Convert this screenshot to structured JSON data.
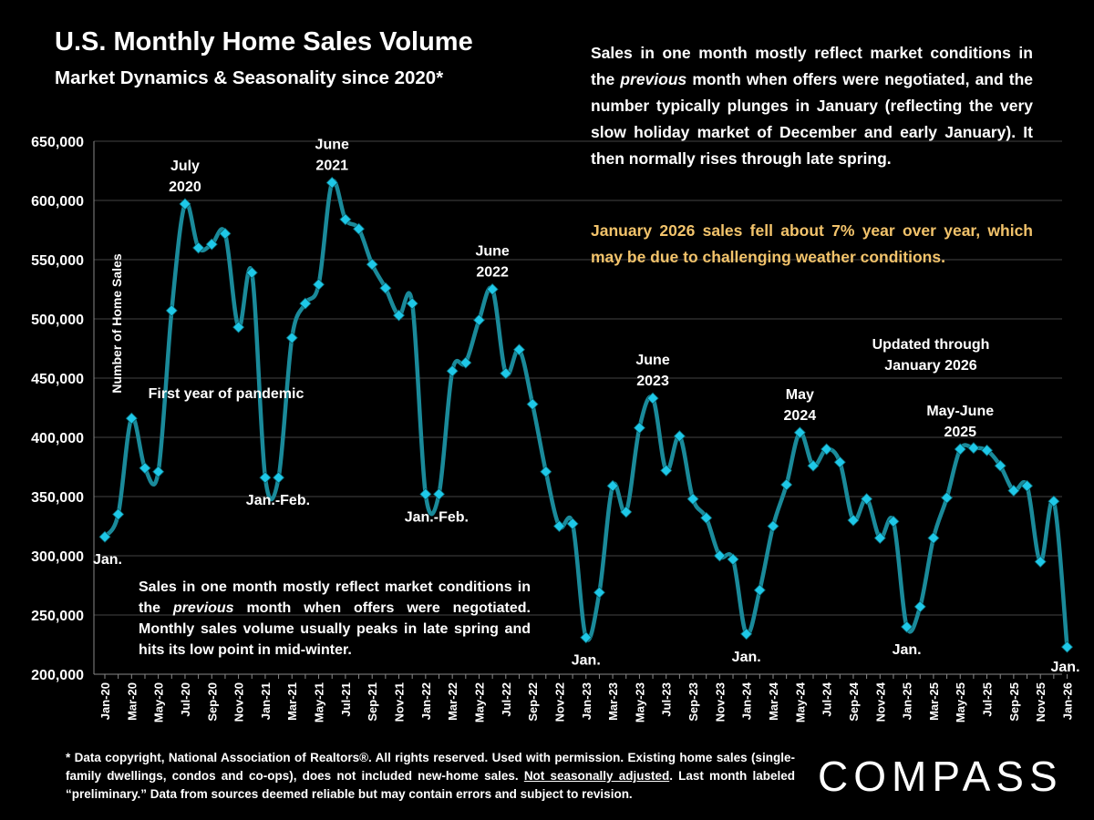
{
  "title": "U.S. Monthly Home Sales Volume",
  "subtitle": "Market Dynamics & Seasonality since 2020*",
  "note_top_html": "Sales in one month mostly reflect market conditions in the <i>previous</i> month when offers were negotiated, and the number typically plunges in January (reflecting the very slow holiday market of December and early January). It then normally rises through late spring.",
  "note_jan": "January 2026 sales fell about 7% year over year, which may be due to challenging weather conditions.",
  "note_bottom_html": "Sales in one month mostly reflect market conditions in the <i>previous</i> month when offers were negotiated. Monthly sales volume usually peaks in late spring and hits its low point in mid-winter.",
  "footer_html": "* Data copyright, National Association of Realtors®. All rights reserved. Used with permission. Existing home sales (single-family dwellings, condos and co-ops), does not included new-home sales. <u>Not seasonally adjusted</u>. Last month labeled “preliminary.” Data from sources deemed reliable but may contain errors and subject to revision.",
  "logo_text": "COMPASS",
  "colors": {
    "line": "#1a8a9a",
    "marker": "#1ec8e8",
    "background": "#000000",
    "highlight_text": "#f2c36b",
    "grid": "#444444"
  },
  "chart_data": {
    "type": "line",
    "ylabel": "Number of Home Sales",
    "xlabel": "",
    "ylim": [
      200000,
      650000
    ],
    "yticks": [
      200000,
      250000,
      300000,
      350000,
      400000,
      450000,
      500000,
      550000,
      600000,
      650000
    ],
    "ytick_labels": [
      "200,000",
      "250,000",
      "300,000",
      "350,000",
      "400,000",
      "450,000",
      "500,000",
      "550,000",
      "600,000",
      "650,000"
    ],
    "grid": "horizontal",
    "x": [
      "Jan-20",
      "Feb-20",
      "Mar-20",
      "Apr-20",
      "May-20",
      "Jun-20",
      "Jul-20",
      "Aug-20",
      "Sep-20",
      "Oct-20",
      "Nov-20",
      "Dec-20",
      "Jan-21",
      "Feb-21",
      "Mar-21",
      "Apr-21",
      "May-21",
      "Jun-21",
      "Jul-21",
      "Aug-21",
      "Sep-21",
      "Oct-21",
      "Nov-21",
      "Dec-21",
      "Jan-22",
      "Feb-22",
      "Mar-22",
      "Apr-22",
      "May-22",
      "Jun-22",
      "Jul-22",
      "Aug-22",
      "Sep-22",
      "Oct-22",
      "Nov-22",
      "Dec-22",
      "Jan-23",
      "Feb-23",
      "Mar-23",
      "Apr-23",
      "May-23",
      "Jun-23",
      "Jul-23",
      "Aug-23",
      "Sep-23",
      "Oct-23",
      "Nov-23",
      "Dec-23",
      "Jan-24",
      "Feb-24",
      "Mar-24",
      "Apr-24",
      "May-24",
      "Jun-24",
      "Jul-24",
      "Aug-24",
      "Sep-24",
      "Oct-24",
      "Nov-24",
      "Dec-24",
      "Jan-25",
      "Feb-25",
      "Mar-25",
      "Apr-25",
      "May-25",
      "Jun-25",
      "Jul-25",
      "Aug-25",
      "Sep-25",
      "Oct-25",
      "Nov-25",
      "Dec-25",
      "Jan-26"
    ],
    "series": [
      {
        "values": [
          316000,
          335000,
          416000,
          374000,
          371000,
          507000,
          597000,
          560000,
          563000,
          572000,
          493000,
          539000,
          366000,
          366000,
          484000,
          513000,
          529000,
          615000,
          584000,
          576000,
          546000,
          526000,
          503000,
          513000,
          352000,
          352000,
          456000,
          463000,
          499000,
          525000,
          454000,
          474000,
          428000,
          371000,
          325000,
          327000,
          231000,
          269000,
          359000,
          337000,
          408000,
          433000,
          372000,
          401000,
          348000,
          332000,
          300000,
          297000,
          234000,
          271000,
          325000,
          360000,
          404000,
          376000,
          390000,
          379000,
          330000,
          348000,
          315000,
          329000,
          240000,
          257000,
          315000,
          349000,
          390000,
          391000,
          389000,
          376000,
          355000,
          359000,
          295000,
          346000,
          223000
        ]
      }
    ],
    "tick_every": 2,
    "annotations": [
      {
        "text": [
          "Jan."
        ],
        "at": "Jan-20",
        "pos": "below"
      },
      {
        "text": [
          "July",
          "2020"
        ],
        "at": "Jul-20",
        "pos": "above"
      },
      {
        "text": [
          "First year of pandemic"
        ],
        "at": "Dec-20",
        "pos": "label"
      },
      {
        "text": [
          "Jan.-Feb."
        ],
        "at": "Jan-21",
        "pos": "below"
      },
      {
        "text": [
          "June",
          "2021"
        ],
        "at": "Jun-21",
        "pos": "above"
      },
      {
        "text": [
          "Jan.-Feb."
        ],
        "at": "Jan-22",
        "pos": "below"
      },
      {
        "text": [
          "June",
          "2022"
        ],
        "at": "Jun-22",
        "pos": "above"
      },
      {
        "text": [
          "Jan."
        ],
        "at": "Jan-23",
        "pos": "below"
      },
      {
        "text": [
          "June",
          "2023"
        ],
        "at": "Jun-23",
        "pos": "above"
      },
      {
        "text": [
          "Jan."
        ],
        "at": "Jan-24",
        "pos": "below"
      },
      {
        "text": [
          "May",
          "2024"
        ],
        "at": "May-24",
        "pos": "above"
      },
      {
        "text": [
          "Jan."
        ],
        "at": "Jan-25",
        "pos": "below"
      },
      {
        "text": [
          "Updated through",
          "January 2026"
        ],
        "at": "Jun-25",
        "pos": "label"
      },
      {
        "text": [
          "May-June",
          "2025"
        ],
        "at": "May-25",
        "pos": "above"
      },
      {
        "text": [
          "Jan."
        ],
        "at": "Jan-26",
        "pos": "below"
      }
    ]
  }
}
